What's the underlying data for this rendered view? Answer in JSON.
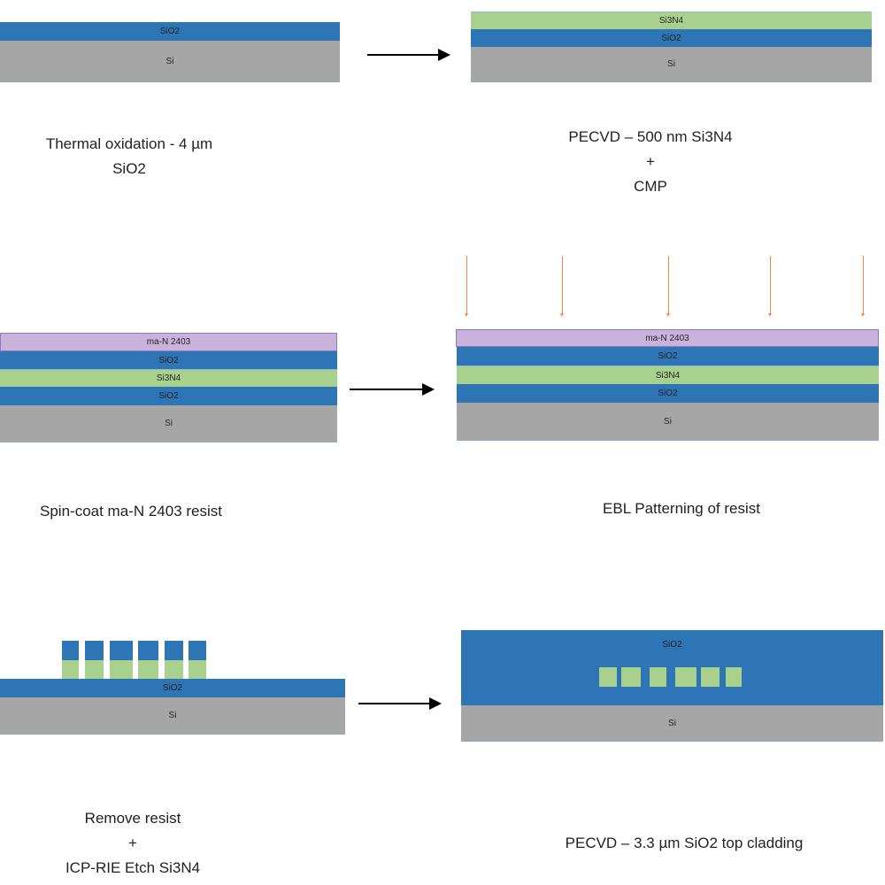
{
  "colors": {
    "sio2": "#2e75b6",
    "si3n4": "#a9d18e",
    "si": "#a6a6a6",
    "resist": "#c9b3dc",
    "ebeam": "#f08a4b"
  },
  "layers": {
    "sio2": "SiO2",
    "si3n4": "Si3N4",
    "si": "Si",
    "resist": "ma-N 2403"
  },
  "steps": [
    {
      "lines": [
        "Thermal oxidation - 4 µm",
        "SiO2"
      ]
    },
    {
      "lines": [
        "PECVD – 500 nm Si3N4",
        "+",
        "CMP"
      ]
    },
    {
      "lines": [
        "Spin-coat ma-N 2403 resist"
      ]
    },
    {
      "lines": [
        "EBL Patterning of resist"
      ]
    },
    {
      "lines": [
        "Remove resist",
        "+",
        "ICP-RIE Etch Si3N4"
      ]
    },
    {
      "lines": [
        "PECVD – 3.3 µm SiO2 top cladding"
      ]
    }
  ]
}
